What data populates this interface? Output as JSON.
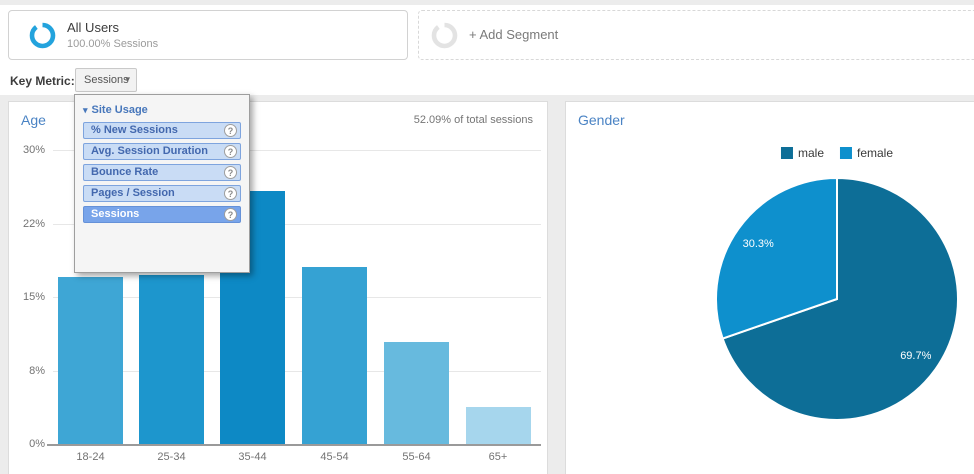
{
  "segments": {
    "all_users": {
      "title": "All Users",
      "subtitle": "100.00% Sessions",
      "ring_color": "#23a3dd"
    },
    "add_segment": {
      "label": "+ Add Segment",
      "ring_color": "#e3e3e3"
    }
  },
  "key_metric": {
    "label": "Key Metric:",
    "selected": "Sessions"
  },
  "metric_dropdown": {
    "group_label": "Site Usage",
    "items": [
      {
        "label": "% New Sessions",
        "selected": false
      },
      {
        "label": "Avg. Session Duration",
        "selected": false
      },
      {
        "label": "Bounce Rate",
        "selected": false
      },
      {
        "label": "Pages / Session",
        "selected": false
      },
      {
        "label": "Sessions",
        "selected": true
      }
    ]
  },
  "age_panel": {
    "title": "Age",
    "note": "52.09% of total sessions"
  },
  "gender_panel": {
    "title": "Gender"
  },
  "chart_data": [
    {
      "type": "bar",
      "title": "Age",
      "categories": [
        "18-24",
        "25-34",
        "35-44",
        "45-54",
        "55-64",
        "65+"
      ],
      "values": [
        17.0,
        17.2,
        25.8,
        18.1,
        10.4,
        3.8
      ],
      "value_unit": "% of sessions",
      "yticks": [
        "0%",
        "8%",
        "15%",
        "22%",
        "30%"
      ],
      "ylim": [
        0,
        30
      ],
      "grid": true,
      "bar_colors": [
        "#3ea6d5",
        "#1d96cd",
        "#0d89c5",
        "#35a2d3",
        "#67bade",
        "#a6d6ed"
      ],
      "annotation": "52.09% of total sessions"
    },
    {
      "type": "pie",
      "title": "Gender",
      "slices": [
        {
          "label": "male",
          "value": 69.7,
          "color": "#0d6e97"
        },
        {
          "label": "female",
          "value": 30.3,
          "color": "#0e90cd"
        }
      ],
      "start_angle_deg": 0,
      "direction": "clockwise",
      "legend_position": "top",
      "slice_label_format": "percent"
    }
  ]
}
